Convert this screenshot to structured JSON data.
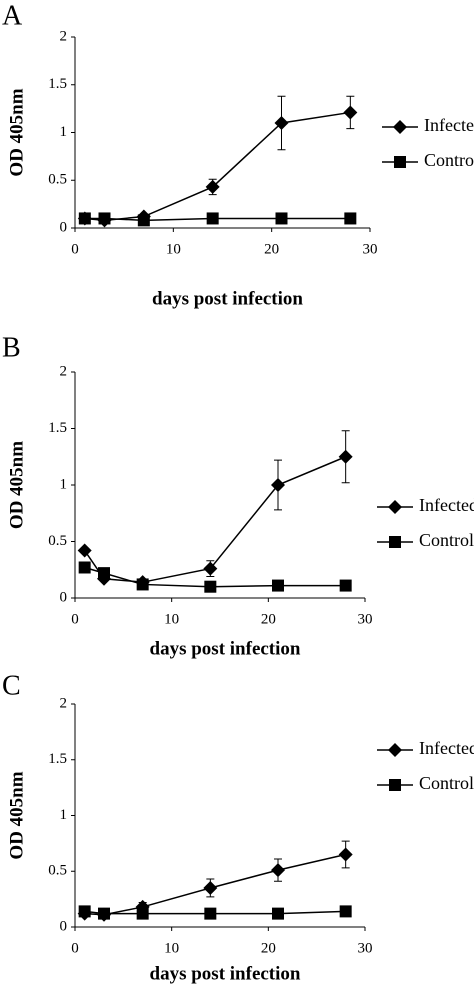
{
  "chart_data": [
    {
      "type": "line",
      "panel_label": "A",
      "y_label": "OD 405nm",
      "x_label": "days post infection",
      "x": [
        1,
        3,
        7,
        14,
        21,
        28
      ],
      "xlim": [
        0,
        30
      ],
      "xticks": [
        0,
        10,
        20,
        30
      ],
      "ylim": [
        0,
        2
      ],
      "yticks": [
        0,
        0.5,
        1,
        1.5,
        2
      ],
      "series": [
        {
          "name": "Infected",
          "color": "#000000",
          "marker": "diamond",
          "values": [
            0.1,
            0.08,
            0.12,
            0.43,
            1.1,
            1.21
          ],
          "errors": [
            0.02,
            0.02,
            0.02,
            0.08,
            0.28,
            0.17
          ]
        },
        {
          "name": "Control",
          "color": "#000000",
          "marker": "square",
          "values": [
            0.1,
            0.1,
            0.08,
            0.1,
            0.1,
            0.1
          ]
        }
      ]
    },
    {
      "type": "line",
      "panel_label": "B",
      "y_label": "OD 405nm",
      "x_label": "days post infection",
      "x": [
        1,
        3,
        7,
        14,
        21,
        28
      ],
      "xlim": [
        0,
        30
      ],
      "xticks": [
        0,
        10,
        20,
        30
      ],
      "ylim": [
        0,
        2
      ],
      "yticks": [
        0,
        0.5,
        1,
        1.5,
        2
      ],
      "series": [
        {
          "name": "Infected",
          "color": "#000000",
          "marker": "diamond",
          "values": [
            0.42,
            0.17,
            0.14,
            0.26,
            1.0,
            1.25
          ],
          "errors": [
            0.02,
            0.02,
            0.02,
            0.07,
            0.22,
            0.23
          ]
        },
        {
          "name": "Control",
          "color": "#000000",
          "marker": "square",
          "values": [
            0.27,
            0.22,
            0.12,
            0.1,
            0.11,
            0.11
          ]
        }
      ]
    },
    {
      "type": "line",
      "panel_label": "C",
      "y_label": "OD 405nm",
      "x_label": "days post infection",
      "x": [
        1,
        3,
        7,
        14,
        21,
        28
      ],
      "xlim": [
        0,
        30
      ],
      "xticks": [
        0,
        10,
        20,
        30
      ],
      "ylim": [
        0,
        2
      ],
      "yticks": [
        0,
        0.5,
        1,
        1.5,
        2
      ],
      "series": [
        {
          "name": "Infected",
          "color": "#000000",
          "marker": "diamond",
          "values": [
            0.12,
            0.11,
            0.18,
            0.35,
            0.51,
            0.65
          ],
          "errors": [
            0.02,
            0.02,
            0.04,
            0.08,
            0.1,
            0.12
          ]
        },
        {
          "name": "Control",
          "color": "#000000",
          "marker": "square",
          "values": [
            0.14,
            0.12,
            0.12,
            0.12,
            0.12,
            0.14
          ]
        }
      ]
    }
  ]
}
